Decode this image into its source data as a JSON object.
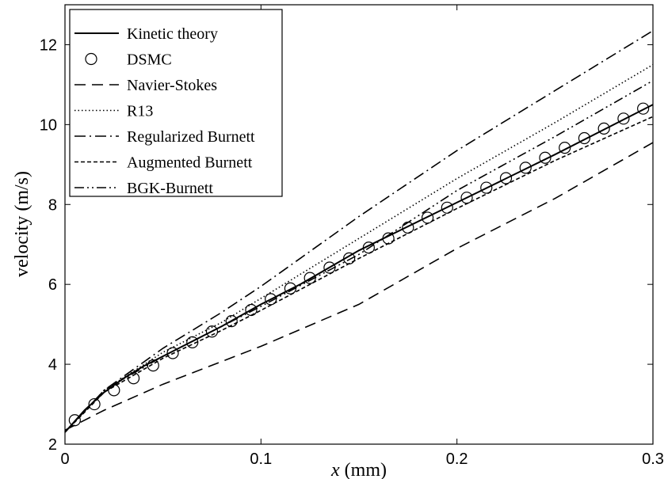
{
  "chart_data": {
    "type": "line",
    "xlabel": "x (mm)",
    "xlabel_var": "x",
    "xlabel_unit": " (mm)",
    "ylabel": "velocity (m/s)",
    "xlim": [
      0,
      0.3
    ],
    "ylim": [
      2,
      13
    ],
    "xticks": [
      0,
      0.1,
      0.2,
      0.3
    ],
    "xtick_labels": [
      "0",
      "0.1",
      "0.2",
      "0.3"
    ],
    "yticks": [
      2,
      4,
      6,
      8,
      10,
      12
    ],
    "ytick_labels": [
      "2",
      "4",
      "6",
      "8",
      "10",
      "12"
    ],
    "grid": false,
    "legend_position": "top-left",
    "series": [
      {
        "name": "Kinetic theory",
        "style": "solid",
        "marker": "none",
        "color": "#000000",
        "x": [
          0,
          0.01,
          0.02,
          0.03,
          0.04,
          0.05,
          0.06,
          0.07,
          0.08,
          0.1,
          0.12,
          0.15,
          0.2,
          0.25,
          0.3
        ],
        "y": [
          2.3,
          2.85,
          3.3,
          3.65,
          3.95,
          4.2,
          4.45,
          4.7,
          4.95,
          5.5,
          6.0,
          6.85,
          8.05,
          9.25,
          10.5
        ]
      },
      {
        "name": "DSMC",
        "style": "none",
        "marker": "circle",
        "color": "#000000",
        "x": [
          0.005,
          0.015,
          0.025,
          0.035,
          0.045,
          0.055,
          0.065,
          0.075,
          0.085,
          0.095,
          0.105,
          0.115,
          0.125,
          0.135,
          0.145,
          0.155,
          0.165,
          0.175,
          0.185,
          0.195,
          0.205,
          0.215,
          0.225,
          0.235,
          0.245,
          0.255,
          0.265,
          0.275,
          0.285,
          0.295
        ],
        "y": [
          2.6,
          3.0,
          3.35,
          3.65,
          3.97,
          4.28,
          4.55,
          4.82,
          5.08,
          5.36,
          5.63,
          5.9,
          6.16,
          6.42,
          6.65,
          6.92,
          7.15,
          7.42,
          7.67,
          7.92,
          8.17,
          8.42,
          8.66,
          8.92,
          9.17,
          9.42,
          9.66,
          9.9,
          10.15,
          10.4
        ]
      },
      {
        "name": "Navier-Stokes",
        "style": "dashed",
        "marker": "none",
        "color": "#000000",
        "x": [
          0,
          0.02,
          0.05,
          0.1,
          0.15,
          0.2,
          0.25,
          0.3
        ],
        "y": [
          2.35,
          2.85,
          3.5,
          4.45,
          5.5,
          6.9,
          8.15,
          9.55
        ]
      },
      {
        "name": "R13",
        "style": "dotted",
        "marker": "none",
        "color": "#000000",
        "x": [
          0,
          0.02,
          0.05,
          0.08,
          0.1,
          0.15,
          0.2,
          0.25,
          0.3
        ],
        "y": [
          2.3,
          3.35,
          4.3,
          5.05,
          5.65,
          7.15,
          8.65,
          10.05,
          11.5
        ]
      },
      {
        "name": "Regularized Burnett",
        "style": "dashdot",
        "marker": "none",
        "color": "#000000",
        "x": [
          0,
          0.02,
          0.05,
          0.08,
          0.1,
          0.15,
          0.2,
          0.25,
          0.3
        ],
        "y": [
          2.3,
          3.35,
          4.4,
          5.3,
          5.95,
          7.7,
          9.35,
          10.85,
          12.35
        ]
      },
      {
        "name": "Augmented Burnett",
        "style": "short-dashed",
        "marker": "none",
        "color": "#000000",
        "x": [
          0,
          0.02,
          0.05,
          0.08,
          0.1,
          0.15,
          0.2,
          0.25,
          0.3
        ],
        "y": [
          2.3,
          3.3,
          4.15,
          4.85,
          5.35,
          6.65,
          7.9,
          9.1,
          10.2
        ]
      },
      {
        "name": "BGK-Burnett",
        "style": "dash-dot-dot",
        "marker": "none",
        "color": "#000000",
        "x": [
          0,
          0.02,
          0.05,
          0.08,
          0.1,
          0.15,
          0.2,
          0.25,
          0.3
        ],
        "y": [
          2.3,
          3.35,
          4.2,
          4.95,
          5.45,
          6.75,
          8.35,
          9.7,
          11.1
        ]
      }
    ]
  }
}
